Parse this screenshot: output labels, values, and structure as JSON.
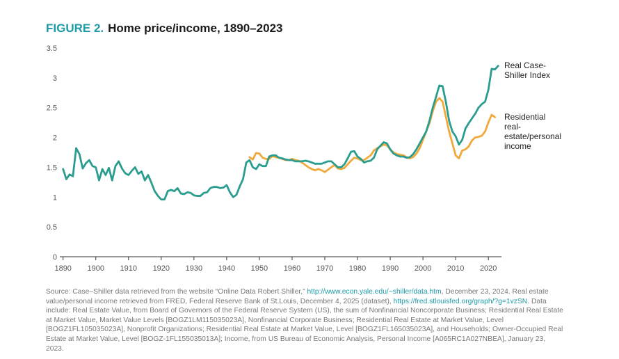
{
  "title": {
    "figure_label": "FIGURE 2.",
    "text": "Home price/income, 1890–2023"
  },
  "colors": {
    "case_shiller": "#2a9d8f",
    "residential": "#f2a93b",
    "figure_label": "#1e9aa8",
    "link": "#1e9aa8"
  },
  "chart_data": {
    "type": "line",
    "title": "Home price/income, 1890–2023",
    "xlabel": "",
    "ylabel": "",
    "xlim": [
      1889,
      2024
    ],
    "ylim": [
      0,
      3.5
    ],
    "grid": false,
    "x_ticks": [
      "1890",
      "1900",
      "1910",
      "1920",
      "1930",
      "1940",
      "1950",
      "1960",
      "1970",
      "1980",
      "1990",
      "2000",
      "2010",
      "2020"
    ],
    "y_ticks": [
      "0",
      "0.5",
      "1",
      "1.5",
      "2",
      "2.5",
      "3",
      "3.5"
    ],
    "series": [
      {
        "name": "Real Case-Shiller Index",
        "label_lines": [
          "Real Case-",
          "Shiller Index"
        ],
        "color_key": "case_shiller",
        "points": [
          [
            1890,
            1.47
          ],
          [
            1891,
            1.3
          ],
          [
            1892,
            1.38
          ],
          [
            1893,
            1.35
          ],
          [
            1894,
            1.82
          ],
          [
            1895,
            1.72
          ],
          [
            1896,
            1.48
          ],
          [
            1897,
            1.57
          ],
          [
            1898,
            1.62
          ],
          [
            1899,
            1.52
          ],
          [
            1900,
            1.5
          ],
          [
            1901,
            1.28
          ],
          [
            1902,
            1.47
          ],
          [
            1903,
            1.37
          ],
          [
            1904,
            1.49
          ],
          [
            1905,
            1.28
          ],
          [
            1906,
            1.52
          ],
          [
            1907,
            1.6
          ],
          [
            1908,
            1.48
          ],
          [
            1909,
            1.4
          ],
          [
            1910,
            1.37
          ],
          [
            1911,
            1.44
          ],
          [
            1912,
            1.5
          ],
          [
            1913,
            1.39
          ],
          [
            1914,
            1.43
          ],
          [
            1915,
            1.28
          ],
          [
            1916,
            1.37
          ],
          [
            1917,
            1.24
          ],
          [
            1918,
            1.1
          ],
          [
            1919,
            1.02
          ],
          [
            1920,
            0.96
          ],
          [
            1921,
            0.96
          ],
          [
            1922,
            1.1
          ],
          [
            1923,
            1.12
          ],
          [
            1924,
            1.1
          ],
          [
            1925,
            1.15
          ],
          [
            1926,
            1.06
          ],
          [
            1927,
            1.05
          ],
          [
            1928,
            1.08
          ],
          [
            1929,
            1.07
          ],
          [
            1930,
            1.03
          ],
          [
            1931,
            1.02
          ],
          [
            1932,
            1.02
          ],
          [
            1933,
            1.07
          ],
          [
            1934,
            1.08
          ],
          [
            1935,
            1.15
          ],
          [
            1936,
            1.17
          ],
          [
            1937,
            1.17
          ],
          [
            1938,
            1.15
          ],
          [
            1939,
            1.16
          ],
          [
            1940,
            1.2
          ],
          [
            1941,
            1.08
          ],
          [
            1942,
            1.0
          ],
          [
            1943,
            1.04
          ],
          [
            1944,
            1.18
          ],
          [
            1945,
            1.3
          ],
          [
            1946,
            1.58
          ],
          [
            1947,
            1.62
          ],
          [
            1948,
            1.5
          ],
          [
            1949,
            1.47
          ],
          [
            1950,
            1.55
          ],
          [
            1951,
            1.52
          ],
          [
            1952,
            1.52
          ],
          [
            1953,
            1.68
          ],
          [
            1954,
            1.7
          ],
          [
            1955,
            1.7
          ],
          [
            1956,
            1.66
          ],
          [
            1957,
            1.65
          ],
          [
            1958,
            1.63
          ],
          [
            1959,
            1.62
          ],
          [
            1960,
            1.62
          ],
          [
            1961,
            1.6
          ],
          [
            1962,
            1.6
          ],
          [
            1963,
            1.6
          ],
          [
            1964,
            1.61
          ],
          [
            1965,
            1.6
          ],
          [
            1966,
            1.58
          ],
          [
            1967,
            1.56
          ],
          [
            1968,
            1.56
          ],
          [
            1969,
            1.56
          ],
          [
            1970,
            1.58
          ],
          [
            1971,
            1.6
          ],
          [
            1972,
            1.6
          ],
          [
            1973,
            1.55
          ],
          [
            1974,
            1.5
          ],
          [
            1975,
            1.5
          ],
          [
            1976,
            1.55
          ],
          [
            1977,
            1.65
          ],
          [
            1978,
            1.76
          ],
          [
            1979,
            1.77
          ],
          [
            1980,
            1.68
          ],
          [
            1981,
            1.64
          ],
          [
            1982,
            1.58
          ],
          [
            1983,
            1.6
          ],
          [
            1984,
            1.61
          ],
          [
            1985,
            1.66
          ],
          [
            1986,
            1.8
          ],
          [
            1987,
            1.86
          ],
          [
            1988,
            1.92
          ],
          [
            1989,
            1.9
          ],
          [
            1990,
            1.8
          ],
          [
            1991,
            1.73
          ],
          [
            1992,
            1.7
          ],
          [
            1993,
            1.68
          ],
          [
            1994,
            1.68
          ],
          [
            1995,
            1.66
          ],
          [
            1996,
            1.67
          ],
          [
            1997,
            1.72
          ],
          [
            1998,
            1.8
          ],
          [
            1999,
            1.9
          ],
          [
            2000,
            2.0
          ],
          [
            2001,
            2.1
          ],
          [
            2002,
            2.28
          ],
          [
            2003,
            2.5
          ],
          [
            2004,
            2.68
          ],
          [
            2005,
            2.87
          ],
          [
            2006,
            2.86
          ],
          [
            2007,
            2.6
          ],
          [
            2008,
            2.28
          ],
          [
            2009,
            2.1
          ],
          [
            2010,
            2.02
          ],
          [
            2011,
            1.88
          ],
          [
            2012,
            1.96
          ],
          [
            2013,
            2.15
          ],
          [
            2014,
            2.24
          ],
          [
            2015,
            2.32
          ],
          [
            2016,
            2.4
          ],
          [
            2017,
            2.5
          ],
          [
            2018,
            2.56
          ],
          [
            2019,
            2.6
          ],
          [
            2020,
            2.8
          ],
          [
            2021,
            3.15
          ],
          [
            2022,
            3.14
          ],
          [
            2023,
            3.2
          ]
        ]
      },
      {
        "name": "Residential real-estate/personal income",
        "label_lines": [
          "Residential",
          "real-",
          "estate/personal",
          "income"
        ],
        "color_key": "residential",
        "points": [
          [
            1947,
            1.67
          ],
          [
            1948,
            1.63
          ],
          [
            1949,
            1.74
          ],
          [
            1950,
            1.73
          ],
          [
            1951,
            1.66
          ],
          [
            1952,
            1.64
          ],
          [
            1953,
            1.64
          ],
          [
            1954,
            1.69
          ],
          [
            1955,
            1.67
          ],
          [
            1956,
            1.66
          ],
          [
            1957,
            1.64
          ],
          [
            1958,
            1.62
          ],
          [
            1959,
            1.62
          ],
          [
            1960,
            1.64
          ],
          [
            1961,
            1.62
          ],
          [
            1962,
            1.61
          ],
          [
            1963,
            1.58
          ],
          [
            1964,
            1.54
          ],
          [
            1965,
            1.5
          ],
          [
            1966,
            1.47
          ],
          [
            1967,
            1.45
          ],
          [
            1968,
            1.47
          ],
          [
            1969,
            1.45
          ],
          [
            1970,
            1.42
          ],
          [
            1971,
            1.46
          ],
          [
            1972,
            1.5
          ],
          [
            1973,
            1.54
          ],
          [
            1974,
            1.48
          ],
          [
            1975,
            1.47
          ],
          [
            1976,
            1.49
          ],
          [
            1977,
            1.55
          ],
          [
            1978,
            1.61
          ],
          [
            1979,
            1.66
          ],
          [
            1980,
            1.65
          ],
          [
            1981,
            1.62
          ],
          [
            1982,
            1.62
          ],
          [
            1983,
            1.66
          ],
          [
            1984,
            1.7
          ],
          [
            1985,
            1.78
          ],
          [
            1986,
            1.82
          ],
          [
            1987,
            1.85
          ],
          [
            1988,
            1.88
          ],
          [
            1989,
            1.87
          ],
          [
            1990,
            1.8
          ],
          [
            1991,
            1.75
          ],
          [
            1992,
            1.72
          ],
          [
            1993,
            1.71
          ],
          [
            1994,
            1.7
          ],
          [
            1995,
            1.67
          ],
          [
            1996,
            1.65
          ],
          [
            1997,
            1.67
          ],
          [
            1998,
            1.73
          ],
          [
            1999,
            1.82
          ],
          [
            2000,
            1.96
          ],
          [
            2001,
            2.1
          ],
          [
            2002,
            2.24
          ],
          [
            2003,
            2.44
          ],
          [
            2004,
            2.6
          ],
          [
            2005,
            2.66
          ],
          [
            2006,
            2.6
          ],
          [
            2007,
            2.35
          ],
          [
            2008,
            2.1
          ],
          [
            2009,
            1.9
          ],
          [
            2010,
            1.7
          ],
          [
            2011,
            1.65
          ],
          [
            2012,
            1.78
          ],
          [
            2013,
            1.8
          ],
          [
            2014,
            1.85
          ],
          [
            2015,
            1.95
          ],
          [
            2016,
            2.0
          ],
          [
            2017,
            2.01
          ],
          [
            2018,
            2.03
          ],
          [
            2019,
            2.1
          ],
          [
            2020,
            2.25
          ],
          [
            2021,
            2.38
          ],
          [
            2022,
            2.34
          ]
        ]
      }
    ]
  },
  "source": {
    "p1": "Source: Case–Shiller data retrieved from the website “Online Data Robert Shiller,” ",
    "link1": "http://www.econ.yale.edu/~shiller/data.htm",
    "p2": ", December 23, 2024. Real estate value/personal income retrieved from FRED, Federal Reserve Bank of St.Louis, December 4, 2025 (dataset), ",
    "link2": "https://fred.stlouisfed.org/graph/?g=1vzSN",
    "p3": ". Data include: Real Estate Value, from Board of Governors of the Federal Reserve System (US), the sum of Nonfinancial Noncorporate Business; Residential Real Estate at Market Value, Market Value Levels [BOGZ1LM115035023A], Nonfinancial Corporate Business; Residential Real Estate at Market Value, Level [BOGZ1FL105035023A], Nonprofit Organizations; Residential Real Estate at Market Value, Level [BOGZ1FL165035023A], and Households; Owner-Occupied Real Estate at Market Value, Level [BOGZ-1FL155035013A]; Income, from US Bureau of Economic Analysis, Personal Income [A065RC1A027NBEA], January 23, 2023."
  }
}
